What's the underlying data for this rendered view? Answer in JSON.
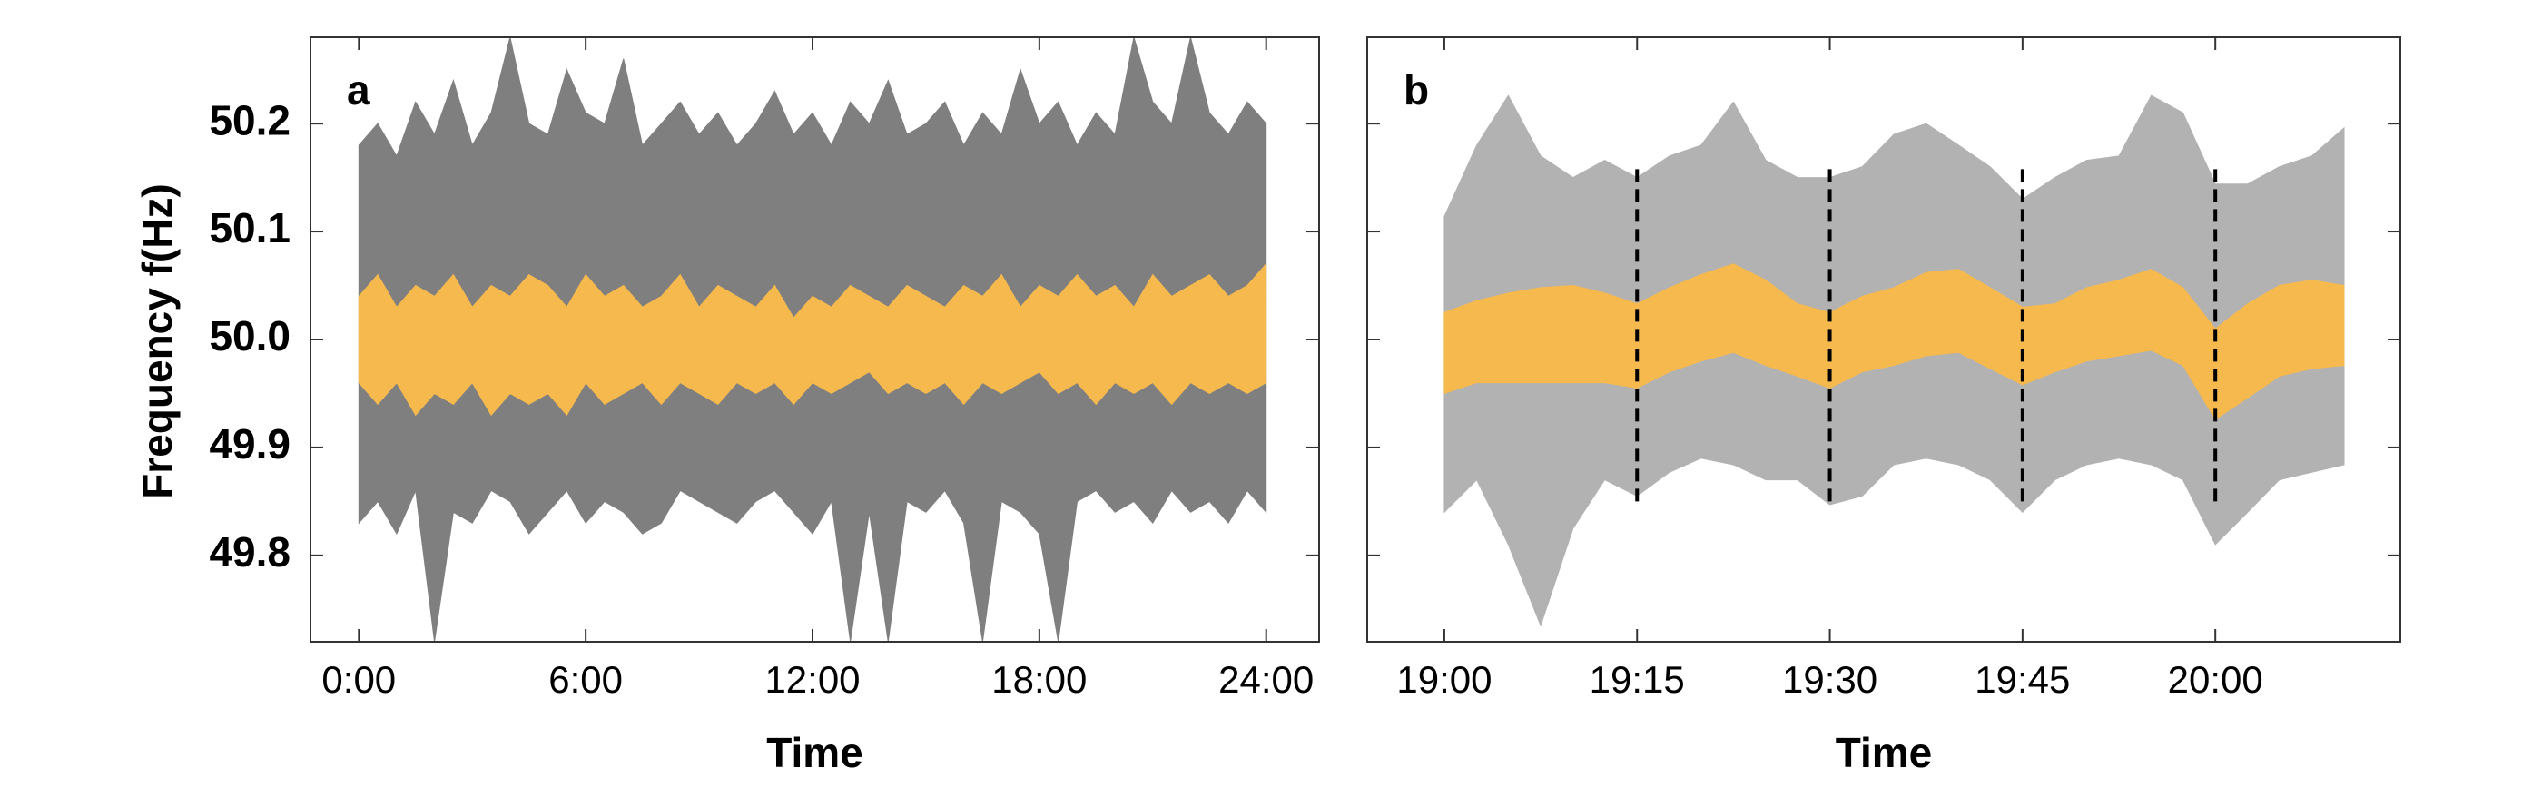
{
  "chart_data": [
    {
      "type": "band",
      "panel_label": "a",
      "xlabel": "Time",
      "ylabel": "Frequency f(Hz)",
      "xlim": [
        -1.28,
        25.4
      ],
      "ylim": [
        49.72,
        50.28
      ],
      "xticks": [
        {
          "value": 0,
          "label": "0:00"
        },
        {
          "value": 6,
          "label": "6:00"
        },
        {
          "value": 12,
          "label": "12:00"
        },
        {
          "value": 18,
          "label": "18:00"
        },
        {
          "value": 24,
          "label": "24:00"
        }
      ],
      "yticks": [
        49.8,
        49.9,
        {
          "value": 50,
          "label": "50.0"
        },
        50.1,
        50.2
      ],
      "show_ytick_labels": true,
      "x": [
        0,
        0.5,
        1,
        1.5,
        2,
        2.5,
        3,
        3.5,
        4,
        4.5,
        5,
        5.5,
        6,
        6.5,
        7,
        7.5,
        8,
        8.5,
        9,
        9.5,
        10,
        10.5,
        11,
        11.5,
        12,
        12.5,
        13,
        13.5,
        14,
        14.5,
        15,
        15.5,
        16,
        16.5,
        17,
        17.5,
        18,
        18.5,
        19,
        19.5,
        20,
        20.5,
        21,
        21.5,
        22,
        22.5,
        23,
        23.5,
        24
      ],
      "series": [
        {
          "color": "#7f7f7f",
          "upper": [
            50.18,
            50.2,
            50.17,
            50.22,
            50.19,
            50.24,
            50.18,
            50.21,
            50.28,
            50.2,
            50.19,
            50.25,
            50.21,
            50.2,
            50.26,
            50.18,
            50.2,
            50.22,
            50.19,
            50.21,
            50.18,
            50.2,
            50.23,
            50.19,
            50.21,
            50.18,
            50.22,
            50.2,
            50.24,
            50.19,
            50.2,
            50.22,
            50.18,
            50.21,
            50.19,
            50.25,
            50.2,
            50.22,
            50.18,
            50.21,
            50.19,
            50.28,
            50.22,
            50.2,
            50.28,
            50.21,
            50.19,
            50.22,
            50.2
          ],
          "lower": [
            49.83,
            49.85,
            49.82,
            49.86,
            49.72,
            49.84,
            49.83,
            49.86,
            49.85,
            49.82,
            49.84,
            49.86,
            49.83,
            49.85,
            49.84,
            49.82,
            49.83,
            49.86,
            49.85,
            49.84,
            49.83,
            49.85,
            49.86,
            49.84,
            49.82,
            49.85,
            49.72,
            49.84,
            49.72,
            49.85,
            49.84,
            49.86,
            49.83,
            49.72,
            49.85,
            49.84,
            49.82,
            49.72,
            49.85,
            49.86,
            49.84,
            49.85,
            49.83,
            49.86,
            49.84,
            49.85,
            49.83,
            49.86,
            49.84
          ]
        },
        {
          "color": "#f6b94e",
          "upper": [
            50.04,
            50.06,
            50.03,
            50.05,
            50.04,
            50.06,
            50.03,
            50.05,
            50.04,
            50.06,
            50.05,
            50.03,
            50.06,
            50.04,
            50.05,
            50.03,
            50.04,
            50.06,
            50.03,
            50.05,
            50.04,
            50.03,
            50.05,
            50.02,
            50.04,
            50.03,
            50.05,
            50.04,
            50.03,
            50.05,
            50.04,
            50.03,
            50.05,
            50.04,
            50.06,
            50.03,
            50.05,
            50.04,
            50.06,
            50.04,
            50.05,
            50.03,
            50.06,
            50.04,
            50.05,
            50.06,
            50.04,
            50.05,
            50.07
          ],
          "lower": [
            49.96,
            49.94,
            49.96,
            49.93,
            49.95,
            49.94,
            49.96,
            49.93,
            49.95,
            49.94,
            49.95,
            49.93,
            49.96,
            49.94,
            49.95,
            49.96,
            49.94,
            49.96,
            49.95,
            49.94,
            49.96,
            49.95,
            49.96,
            49.94,
            49.96,
            49.95,
            49.96,
            49.97,
            49.95,
            49.96,
            49.95,
            49.96,
            49.94,
            49.96,
            49.95,
            49.96,
            49.97,
            49.95,
            49.96,
            49.94,
            49.96,
            49.95,
            49.96,
            49.94,
            49.96,
            49.95,
            49.96,
            49.95,
            49.96
          ]
        }
      ]
    },
    {
      "type": "band",
      "panel_label": "b",
      "xlabel": "Time",
      "xlim": [
        18.9,
        20.24
      ],
      "ylim": [
        49.72,
        50.28
      ],
      "xticks": [
        {
          "value": 19,
          "label": "19:00"
        },
        {
          "value": 19.25,
          "label": "19:15"
        },
        {
          "value": 19.5,
          "label": "19:30"
        },
        {
          "value": 19.75,
          "label": "19:45"
        },
        {
          "value": 20,
          "label": "20:00"
        }
      ],
      "yticks": [
        49.8,
        49.9,
        50,
        50.1,
        50.2
      ],
      "show_ytick_labels": false,
      "vlines": {
        "x": [
          19.25,
          19.5,
          19.75,
          20
        ],
        "ymin": 49.85,
        "ymax": 50.16,
        "color": "#000000"
      },
      "x": [
        19,
        19.042,
        19.083,
        19.125,
        19.167,
        19.208,
        19.25,
        19.292,
        19.333,
        19.375,
        19.417,
        19.458,
        19.5,
        19.542,
        19.583,
        19.625,
        19.667,
        19.708,
        19.75,
        19.792,
        19.833,
        19.875,
        19.917,
        19.958,
        20,
        20.042,
        20.083,
        20.125,
        20.167
      ],
      "series": [
        {
          "color": "#b2b2b2",
          "upper": [
            50.114,
            50.18,
            50.226,
            50.17,
            50.15,
            50.166,
            50.15,
            50.17,
            50.18,
            50.22,
            50.166,
            50.15,
            50.15,
            50.16,
            50.19,
            50.2,
            50.18,
            50.16,
            50.13,
            50.15,
            50.166,
            50.17,
            50.226,
            50.21,
            50.144,
            50.144,
            50.16,
            50.17,
            50.196
          ],
          "lower": [
            49.84,
            49.87,
            49.81,
            49.735,
            49.825,
            49.87,
            49.855,
            49.877,
            49.89,
            49.884,
            49.87,
            49.87,
            49.847,
            49.855,
            49.884,
            49.89,
            49.884,
            49.87,
            49.84,
            49.87,
            49.884,
            49.89,
            49.884,
            49.87,
            49.81,
            49.84,
            49.87,
            49.877,
            49.884
          ]
        },
        {
          "color": "#f6b94e",
          "upper": [
            50.025,
            50.036,
            50.043,
            50.048,
            50.05,
            50.043,
            50.033,
            50.048,
            50.06,
            50.07,
            50.055,
            50.033,
            50.025,
            50.04,
            50.048,
            50.062,
            50.065,
            50.048,
            50.03,
            50.033,
            50.048,
            50.055,
            50.065,
            50.048,
            50.01,
            50.033,
            50.05,
            50.055,
            50.05
          ],
          "lower": [
            49.95,
            49.96,
            49.96,
            49.96,
            49.96,
            49.96,
            49.955,
            49.97,
            49.98,
            49.988,
            49.976,
            49.966,
            49.955,
            49.97,
            49.976,
            49.985,
            49.988,
            49.973,
            49.958,
            49.97,
            49.98,
            49.985,
            49.99,
            49.976,
            49.926,
            49.946,
            49.966,
            49.973,
            49.976
          ]
        }
      ]
    }
  ]
}
